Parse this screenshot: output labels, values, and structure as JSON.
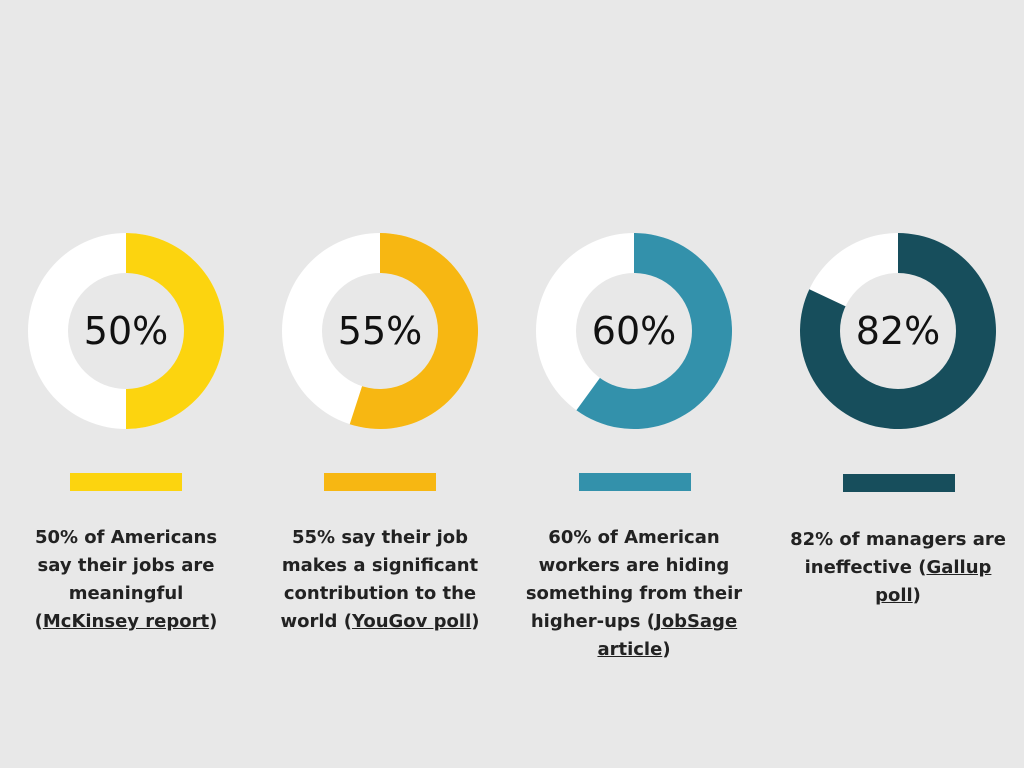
{
  "chart_data": [
    {
      "type": "pie",
      "value": 50,
      "label": "50%",
      "color": "#fcd40f",
      "caption": {
        "text": "50% of Americans say their jobs are meaningful",
        "source": "McKinsey report"
      }
    },
    {
      "type": "pie",
      "value": 55,
      "label": "55%",
      "color": "#f7b712",
      "caption": {
        "text": "55% say their job makes a significant contribution to the world",
        "source": "YouGov poll"
      }
    },
    {
      "type": "pie",
      "value": 60,
      "label": "60%",
      "color": "#3391ab",
      "caption": {
        "text": "60% of American workers are hiding something from their higher-ups",
        "source": "JobSage article"
      }
    },
    {
      "type": "pie",
      "value": 82,
      "label": "82%",
      "color": "#174e5c",
      "caption": {
        "text": "82% of managers are ineffective",
        "source": "Gallup poll"
      }
    }
  ],
  "ring_background": "#ffffff",
  "center_color": "#e8e8e8"
}
